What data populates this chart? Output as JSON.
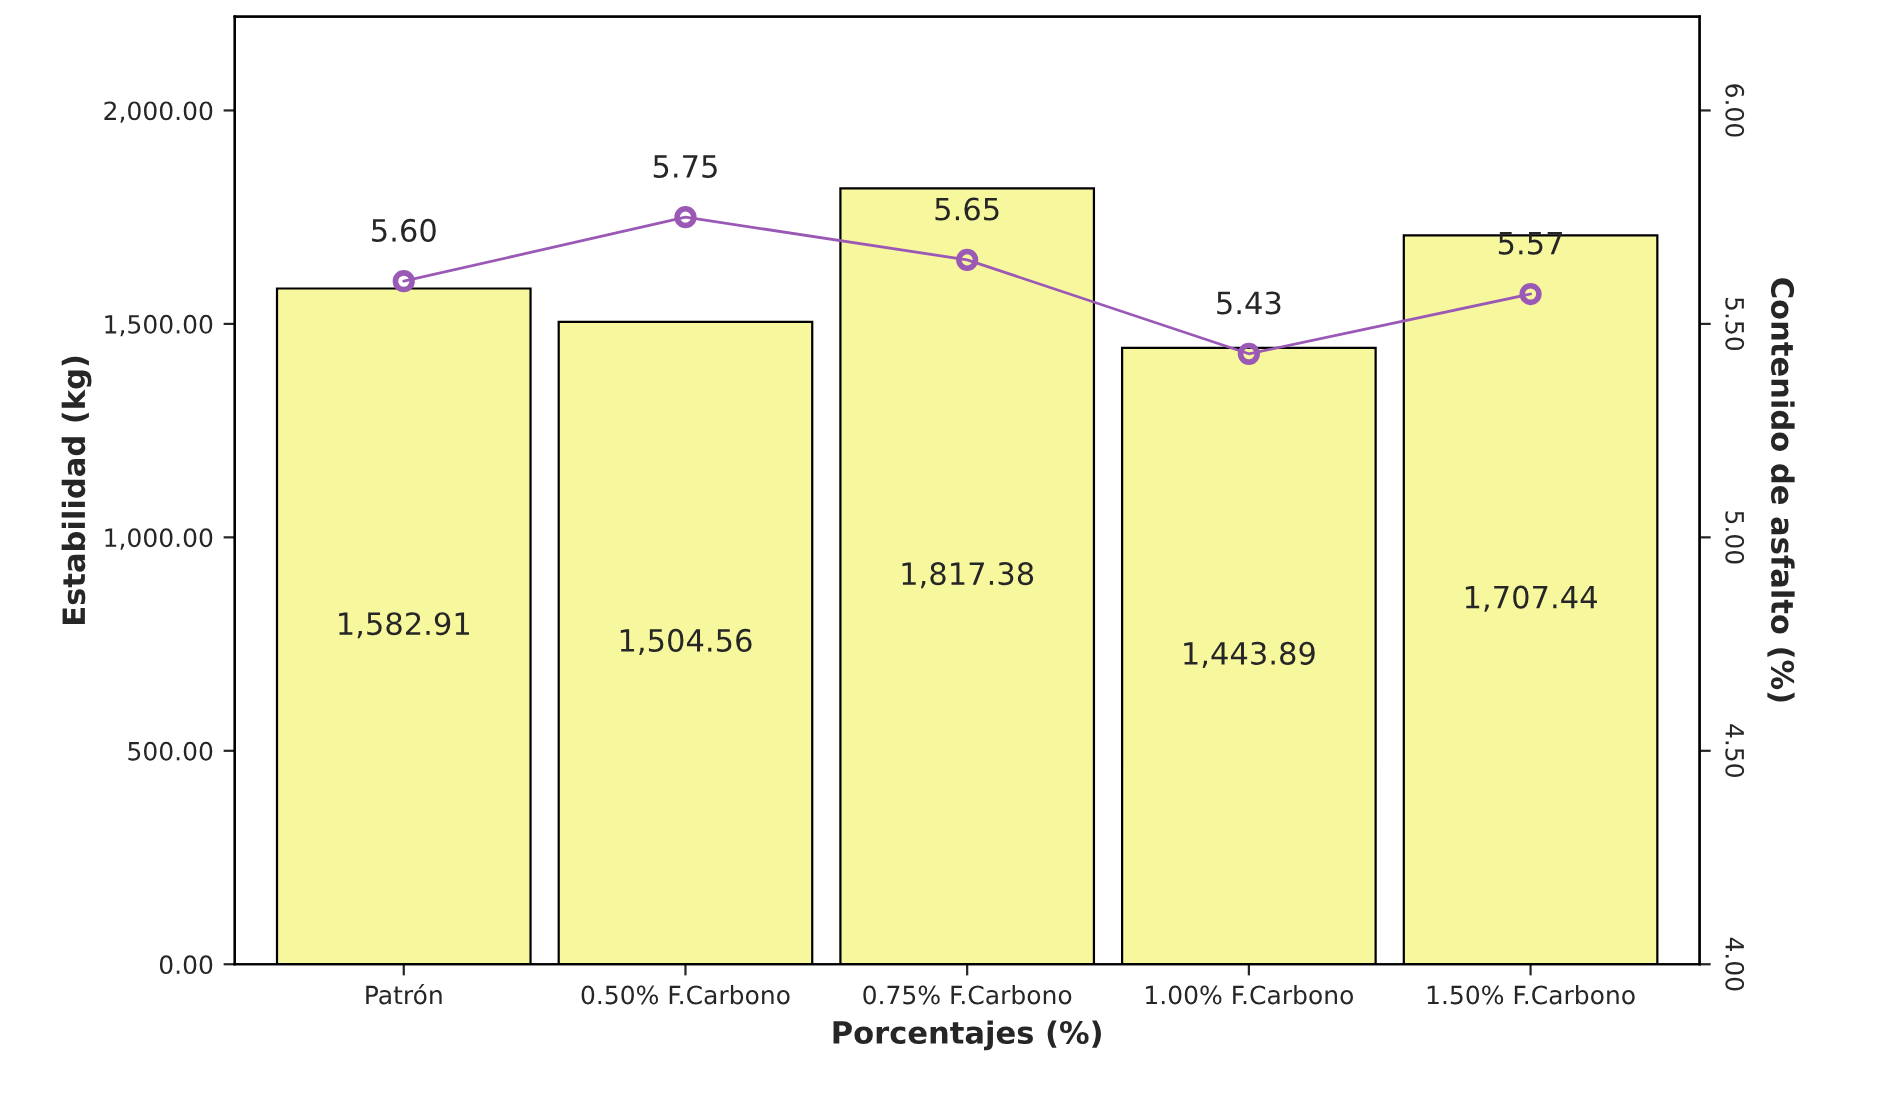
{
  "chart_data": {
    "type": "bar",
    "xlabel": "Porcentajes (%)",
    "ylabel": "Estabilidad (kg)",
    "y2label": "Contenido de asfalto (%)",
    "categories": [
      "Patrón",
      "0.50% F.Carbono",
      "0.75% F.Carbono",
      "1.00% F.Carbono",
      "1.50% F.Carbono"
    ],
    "series": [
      {
        "color": "#f7f79e",
        "values": [
          1582.91,
          1504.56,
          1817.38,
          1443.89,
          1707.44
        ],
        "value_labels": [
          "1,582.91",
          "1,504.56",
          "1,817.38",
          "1,443.89",
          "1,707.44"
        ]
      },
      {
        "type": "line",
        "axis": "y2",
        "color": "#9b59b6",
        "marker": "circle",
        "values": [
          5.6,
          5.75,
          5.65,
          5.43,
          5.57
        ],
        "value_labels": [
          "5.60",
          "5.75",
          "5.65",
          "5.43",
          "5.57"
        ]
      }
    ],
    "ylim": [
      0,
      2220
    ],
    "yticks": [
      {
        "value": 0,
        "label": "0.00"
      },
      {
        "value": 500,
        "label": "500.00"
      },
      {
        "value": 1000,
        "label": "1,000.00"
      },
      {
        "value": 1500,
        "label": "1,500.00"
      },
      {
        "value": 2000,
        "label": "2,000.00"
      }
    ],
    "y2lim": [
      4,
      6.22
    ],
    "y2ticks": [
      {
        "value": 4,
        "label": "4.00"
      },
      {
        "value": 4.5,
        "label": "4.50"
      },
      {
        "value": 5,
        "label": "5.00"
      },
      {
        "value": 5.5,
        "label": "5.50"
      },
      {
        "value": 6,
        "label": "6.00"
      }
    ],
    "grid": false,
    "legend": false
  }
}
